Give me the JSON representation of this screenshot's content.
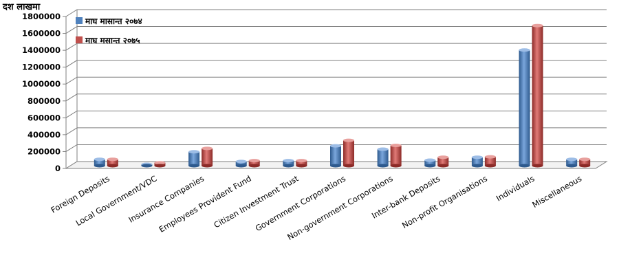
{
  "chart_data": {
    "type": "bar",
    "unit_label": "दश लाखमा",
    "categories": [
      "Foreign Deposits",
      "Local Government/VDC",
      "Insurance Companies",
      "Employees Provident Fund",
      "Citizen Investment Trust",
      "Government Corporations",
      "Non-government Corporations",
      "Inter-bank Deposits",
      "Non-profit Organisations",
      "Individuals",
      "Miscellaneous"
    ],
    "series": [
      {
        "name": "माघ मासान्त २०७४",
        "color": "#4f81bd",
        "values": [
          75000,
          15000,
          165000,
          50000,
          60000,
          235000,
          195000,
          65000,
          100000,
          1370000,
          75000
        ]
      },
      {
        "name": "माघ मसान्त २०७५",
        "color": "#c0504d",
        "values": [
          75000,
          35000,
          205000,
          60000,
          60000,
          300000,
          240000,
          100000,
          105000,
          1660000,
          75000
        ]
      }
    ],
    "yticks": [
      "0",
      "200000",
      "400000",
      "600000",
      "800000",
      "1000000",
      "1200000",
      "1400000",
      "1600000",
      "1800000"
    ],
    "ylim": [
      0,
      1800000
    ],
    "grid": true,
    "legend_position": "top-left"
  }
}
